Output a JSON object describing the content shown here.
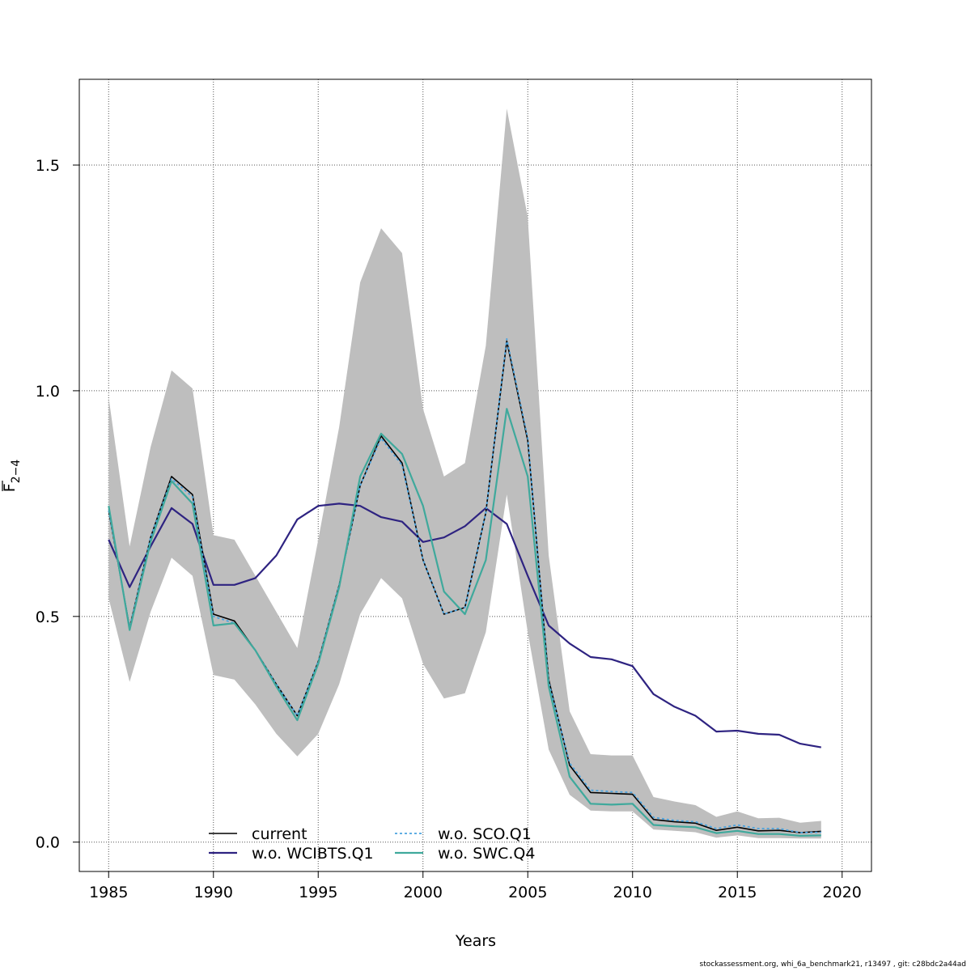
{
  "chart_data": {
    "type": "line",
    "xlabel": "Years",
    "ylabel": {
      "main": "F",
      "sub": "2−4"
    },
    "xlim": [
      1983.6,
      2021.4
    ],
    "ylim": [
      -0.065,
      1.69
    ],
    "xticks": [
      "1985",
      "1990",
      "1995",
      "2000",
      "2005",
      "2010",
      "2015",
      "2020"
    ],
    "yticks": [
      "0.0",
      "0.5",
      "1.0",
      "1.5"
    ],
    "grid": true,
    "legend_position": "bottom-left",
    "confidence_band": {
      "x": [
        1985,
        1986,
        1987,
        1988,
        1989,
        1990,
        1991,
        1992,
        1993,
        1994,
        1995,
        1996,
        1997,
        1998,
        1999,
        2000,
        2001,
        2002,
        2003,
        2004,
        2005,
        2006,
        2007,
        2008,
        2009,
        2010,
        2011,
        2012,
        2013,
        2014,
        2015,
        2016,
        2017,
        2018,
        2019
      ],
      "upper": [
        0.985,
        0.655,
        0.875,
        1.045,
        1.005,
        0.68,
        0.67,
        0.59,
        0.51,
        0.43,
        0.67,
        0.92,
        1.24,
        1.36,
        1.305,
        0.96,
        0.81,
        0.84,
        1.1,
        1.625,
        1.385,
        0.635,
        0.29,
        0.195,
        0.192,
        0.192,
        0.1,
        0.09,
        0.082,
        0.056,
        0.068,
        0.053,
        0.054,
        0.043,
        0.047
      ],
      "lower": [
        0.54,
        0.355,
        0.51,
        0.63,
        0.59,
        0.37,
        0.36,
        0.305,
        0.24,
        0.19,
        0.24,
        0.35,
        0.505,
        0.585,
        0.54,
        0.395,
        0.318,
        0.33,
        0.465,
        0.77,
        0.465,
        0.205,
        0.105,
        0.07,
        0.068,
        0.068,
        0.028,
        0.025,
        0.022,
        0.01,
        0.015,
        0.009,
        0.009,
        0.008,
        0.008
      ],
      "color": "#bebebe"
    },
    "series": [
      {
        "name": "current",
        "color": "#000000",
        "dash": "",
        "width": 1.6,
        "x": [
          1985,
          1986,
          1987,
          1988,
          1989,
          1990,
          1991,
          1992,
          1993,
          1994,
          1995,
          1996,
          1997,
          1998,
          1999,
          2000,
          2001,
          2002,
          2003,
          2004,
          2005,
          2006,
          2007,
          2008,
          2009,
          2010,
          2011,
          2012,
          2013,
          2014,
          2015,
          2016,
          2017,
          2018,
          2019
        ],
        "values": [
          0.735,
          0.475,
          0.675,
          0.81,
          0.77,
          0.505,
          0.49,
          0.425,
          0.35,
          0.28,
          0.4,
          0.57,
          0.79,
          0.9,
          0.84,
          0.625,
          0.505,
          0.52,
          0.73,
          1.11,
          0.89,
          0.36,
          0.17,
          0.11,
          0.108,
          0.106,
          0.05,
          0.045,
          0.042,
          0.026,
          0.033,
          0.025,
          0.026,
          0.021,
          0.024
        ]
      },
      {
        "name": "w.o. WCIBTS.Q1",
        "color": "#2e2381",
        "dash": "",
        "width": 2.2,
        "x": [
          1985,
          1986,
          1987,
          1988,
          1989,
          1990,
          1991,
          1992,
          1993,
          1994,
          1995,
          1996,
          1997,
          1998,
          1999,
          2000,
          2001,
          2002,
          2003,
          2004,
          2005,
          2006,
          2007,
          2008,
          2009,
          2010,
          2011,
          2012,
          2013,
          2014,
          2015,
          2016,
          2017,
          2018,
          2019
        ],
        "values": [
          0.67,
          0.565,
          0.655,
          0.74,
          0.705,
          0.57,
          0.57,
          0.585,
          0.635,
          0.715,
          0.745,
          0.75,
          0.745,
          0.72,
          0.71,
          0.665,
          0.675,
          0.7,
          0.74,
          0.705,
          0.59,
          0.48,
          0.44,
          0.41,
          0.405,
          0.39,
          0.328,
          0.3,
          0.28,
          0.245,
          0.247,
          0.24,
          0.238,
          0.218,
          0.21
        ]
      },
      {
        "name": "w.o. SCO.Q1",
        "color": "#4aa3df",
        "dash": "3,3",
        "width": 1.8,
        "x": [
          1985,
          1986,
          1987,
          1988,
          1989,
          1990,
          1991,
          1992,
          1993,
          1994,
          1995,
          1996,
          1997,
          1998,
          1999,
          2000,
          2001,
          2002,
          2003,
          2004,
          2005,
          2006,
          2007,
          2008,
          2009,
          2010,
          2011,
          2012,
          2013,
          2014,
          2015,
          2016,
          2017,
          2018,
          2019
        ],
        "values": [
          0.735,
          0.475,
          0.675,
          0.805,
          0.765,
          0.5,
          0.485,
          0.425,
          0.35,
          0.28,
          0.4,
          0.57,
          0.79,
          0.895,
          0.835,
          0.625,
          0.505,
          0.52,
          0.73,
          1.115,
          0.895,
          0.355,
          0.175,
          0.115,
          0.112,
          0.11,
          0.055,
          0.048,
          0.045,
          0.03,
          0.038,
          0.03,
          0.03,
          0.021,
          0.022
        ]
      },
      {
        "name": "w.o. SWC.Q4",
        "color": "#3fa99c",
        "dash": "",
        "width": 2.2,
        "x": [
          1985,
          1986,
          1987,
          1988,
          1989,
          1990,
          1991,
          1992,
          1993,
          1994,
          1995,
          1996,
          1997,
          1998,
          1999,
          2000,
          2001,
          2002,
          2003,
          2004,
          2005,
          2006,
          2007,
          2008,
          2009,
          2010,
          2011,
          2012,
          2013,
          2014,
          2015,
          2016,
          2017,
          2018,
          2019
        ],
        "values": [
          0.745,
          0.47,
          0.665,
          0.8,
          0.75,
          0.48,
          0.485,
          0.425,
          0.345,
          0.27,
          0.395,
          0.565,
          0.81,
          0.905,
          0.86,
          0.745,
          0.555,
          0.505,
          0.625,
          0.96,
          0.81,
          0.345,
          0.145,
          0.085,
          0.083,
          0.085,
          0.038,
          0.035,
          0.033,
          0.02,
          0.025,
          0.018,
          0.018,
          0.014,
          0.015
        ]
      }
    ]
  },
  "footer": "stockassessment.org, whi_6a_benchmark21, r13497 , git: c28bdc2a44ad"
}
